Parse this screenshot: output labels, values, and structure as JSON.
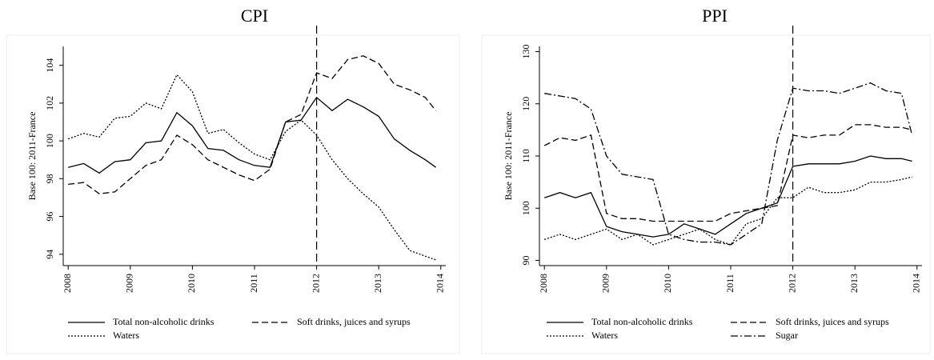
{
  "chart_data": [
    {
      "type": "line",
      "title": "CPI",
      "y_label": "Base 100: 2011-France",
      "x": [
        2008,
        2008.25,
        2008.5,
        2008.75,
        2009,
        2009.25,
        2009.5,
        2009.75,
        2010,
        2010.25,
        2010.5,
        2010.75,
        2011,
        2011.25,
        2011.5,
        2011.75,
        2012,
        2012.25,
        2012.5,
        2012.75,
        2013,
        2013.25,
        2013.5,
        2013.75,
        2013.92
      ],
      "xlim": [
        2007.92,
        2014.08
      ],
      "xticks": [
        2008,
        2009,
        2010,
        2011,
        2012,
        2013,
        2014
      ],
      "ylim": [
        93.4,
        105
      ],
      "yticks": [
        94,
        96,
        98,
        100,
        102,
        104
      ],
      "vline": 2012,
      "series": [
        {
          "name": "Total non-alcoholic drinks",
          "color": "#000000",
          "style": "solid",
          "values": [
            98.6,
            98.8,
            98.3,
            98.9,
            99.0,
            99.9,
            100.0,
            101.5,
            100.8,
            99.6,
            99.5,
            99.0,
            98.7,
            98.6,
            101.0,
            101.1,
            102.3,
            101.6,
            102.2,
            101.8,
            101.3,
            100.1,
            99.5,
            99.0,
            98.6
          ]
        },
        {
          "name": "Soft drinks, juices and syrups",
          "color": "#000000",
          "style": "dashed",
          "values": [
            97.7,
            97.8,
            97.2,
            97.3,
            98.0,
            98.7,
            99.0,
            100.3,
            99.8,
            99.0,
            98.6,
            98.2,
            97.9,
            98.5,
            101.0,
            101.4,
            103.6,
            103.3,
            104.3,
            104.5,
            104.1,
            103.0,
            102.7,
            102.3,
            101.6
          ]
        },
        {
          "name": "Waters",
          "color": "#000000",
          "style": "dotted",
          "values": [
            100.1,
            100.4,
            100.2,
            101.2,
            101.3,
            102.0,
            101.7,
            103.5,
            102.6,
            100.4,
            100.6,
            99.9,
            99.3,
            99.0,
            100.5,
            101.1,
            100.3,
            99.0,
            98.0,
            97.2,
            96.5,
            95.3,
            94.2,
            93.9,
            93.7
          ]
        }
      ]
    },
    {
      "type": "line",
      "title": "PPI",
      "y_label": "Base 100: 2011-France",
      "x": [
        2008,
        2008.25,
        2008.5,
        2008.75,
        2009,
        2009.25,
        2009.5,
        2009.75,
        2010,
        2010.25,
        2010.5,
        2010.75,
        2011,
        2011.25,
        2011.5,
        2011.75,
        2012,
        2012.25,
        2012.5,
        2012.75,
        2013,
        2013.25,
        2013.5,
        2013.75,
        2013.92
      ],
      "xlim": [
        2007.92,
        2014.08
      ],
      "xticks": [
        2008,
        2009,
        2010,
        2011,
        2012,
        2013,
        2014
      ],
      "ylim": [
        89,
        131
      ],
      "yticks": [
        90,
        100,
        110,
        120,
        130
      ],
      "vline": 2012,
      "series": [
        {
          "name": "Total non-alcoholic drinks",
          "color": "#000000",
          "style": "solid",
          "values": [
            102,
            103,
            102,
            103,
            96.5,
            95.5,
            95,
            94.5,
            95,
            97,
            96,
            95,
            97,
            99,
            100,
            101,
            108,
            108.5,
            108.5,
            108.5,
            109,
            110,
            109.5,
            109.5,
            109
          ]
        },
        {
          "name": "Soft drinks, juices and syrups",
          "color": "#000000",
          "style": "dashed",
          "values": [
            112,
            113.5,
            113,
            114,
            99,
            98,
            98,
            97.5,
            97.5,
            97.5,
            97.5,
            97.5,
            99,
            99.5,
            100,
            100.5,
            114,
            113.5,
            114,
            114,
            116,
            116,
            115.5,
            115.5,
            115
          ]
        },
        {
          "name": "Waters",
          "color": "#000000",
          "style": "dotted",
          "values": [
            94,
            95,
            94,
            95,
            96,
            94,
            95,
            93,
            94,
            95,
            96,
            94,
            93,
            97,
            98,
            102,
            102,
            104,
            103,
            103,
            103.5,
            105,
            105,
            105.5,
            106
          ]
        },
        {
          "name": "Sugar",
          "color": "#000000",
          "style": "dashdot",
          "values": [
            122,
            121.5,
            121,
            119,
            110,
            106.5,
            106,
            105.5,
            95,
            94,
            93.5,
            93.5,
            93,
            95,
            97,
            113,
            123,
            122.5,
            122.5,
            122,
            123,
            124,
            122.5,
            122,
            114
          ]
        }
      ]
    }
  ]
}
